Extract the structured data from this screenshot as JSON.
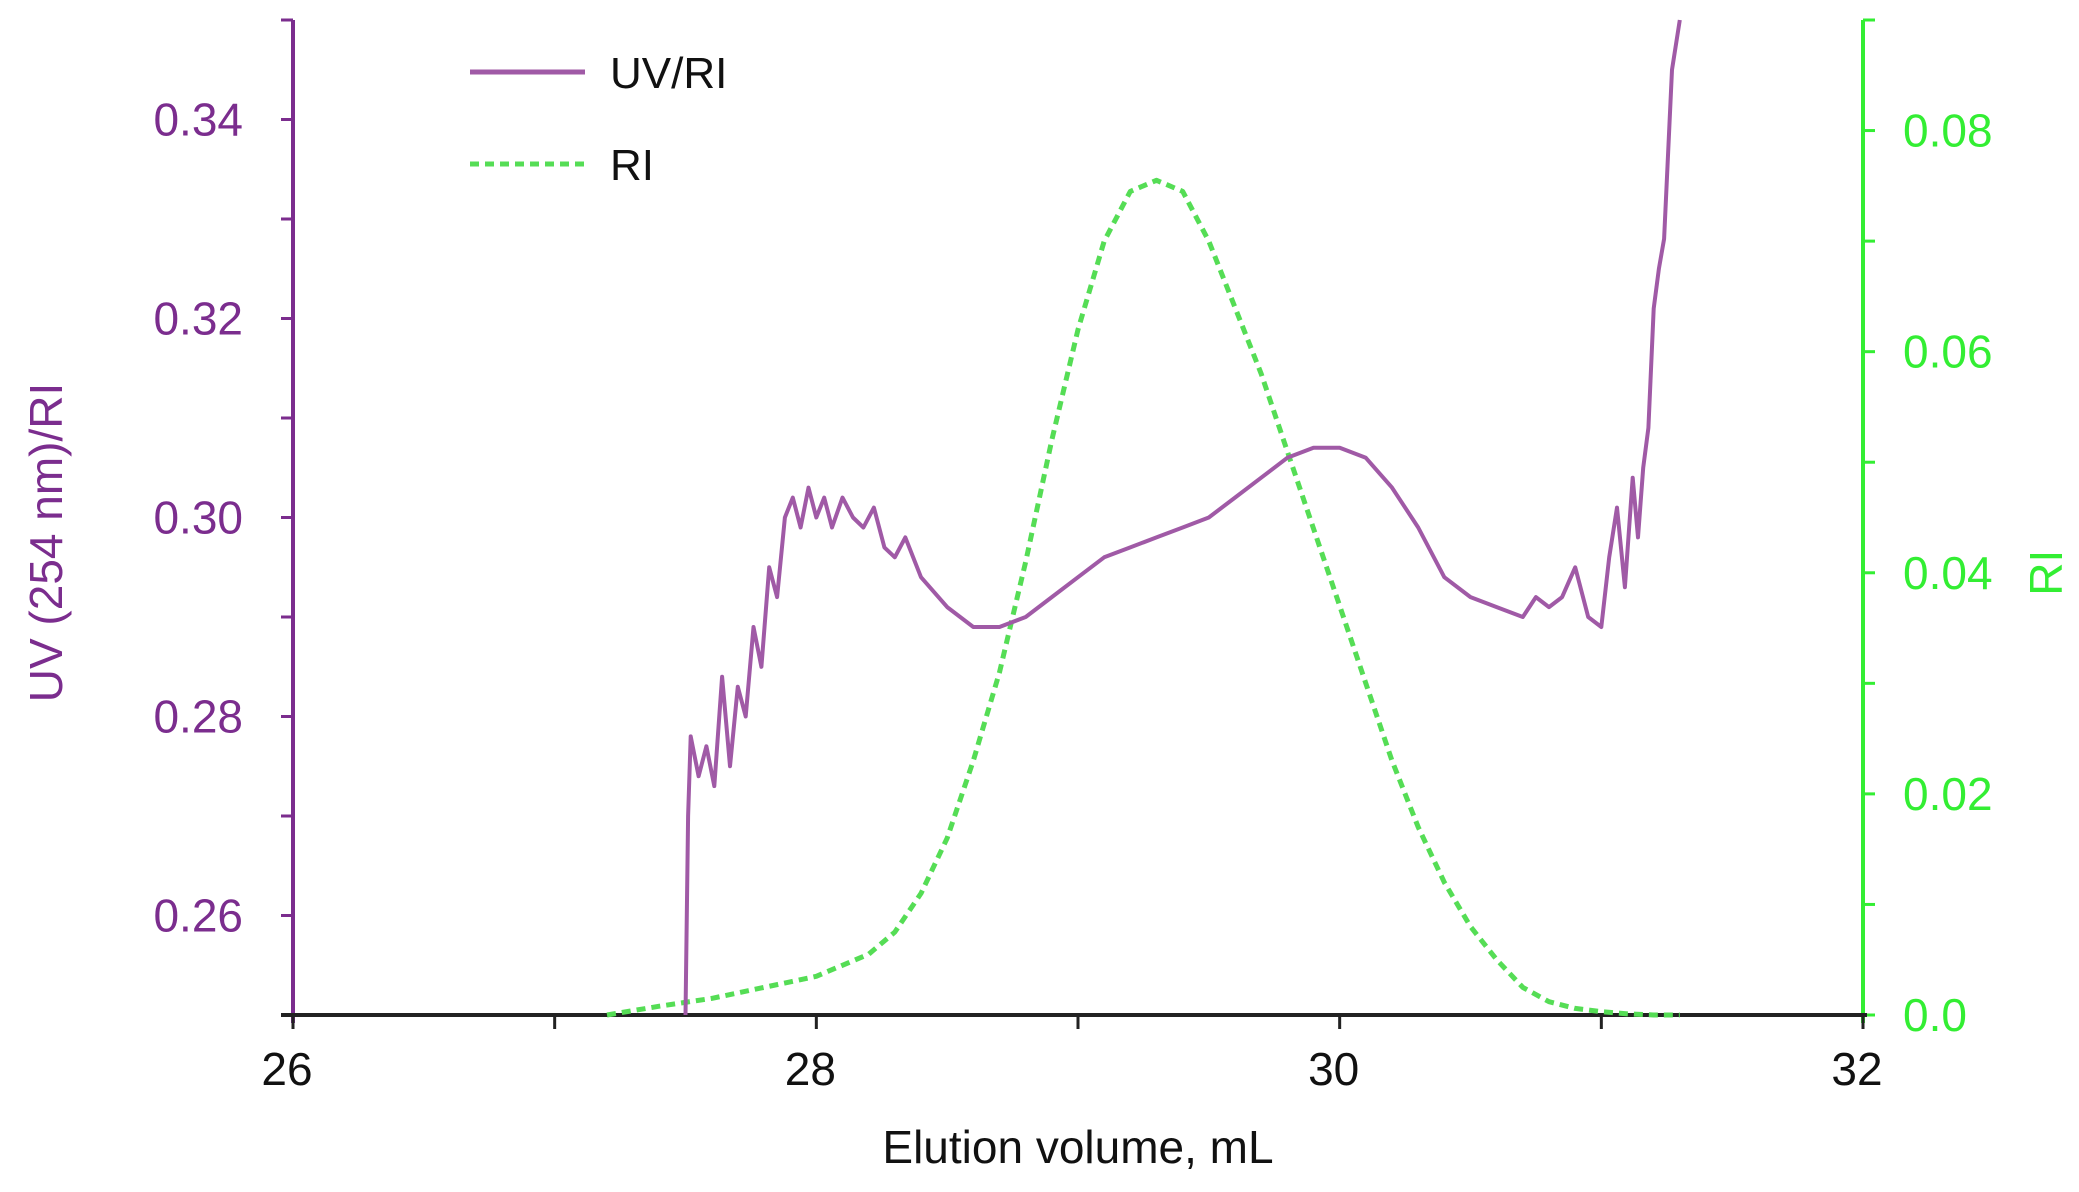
{
  "chart_data": {
    "type": "line",
    "title": "",
    "xlabel": "Elution volume, mL",
    "ylabel_left": "UV (254 nm)/RI",
    "ylabel_right": "RI",
    "xlim": [
      26,
      32
    ],
    "ylim_left": [
      0.25,
      0.35
    ],
    "ylim_right": [
      0.0,
      0.09
    ],
    "x_ticks": [
      26,
      28,
      30,
      32
    ],
    "x_minor_ticks": [
      27,
      29,
      31
    ],
    "y_left_ticks": [
      0.26,
      0.28,
      0.3,
      0.32,
      0.34
    ],
    "y_left_tick_labels": [
      "0.26",
      "0.28",
      "0.30",
      "0.32",
      "0.34"
    ],
    "y_right_ticks": [
      0.0,
      0.02,
      0.04,
      0.06,
      0.08
    ],
    "y_right_tick_labels": [
      "0.0",
      "0.02",
      "0.04",
      "0.06",
      "0.08"
    ],
    "grid": false,
    "legend_position": "top-left",
    "colors": {
      "left_axis": "#7b2d8e",
      "uv_ri_line": "#a05aa6",
      "right_axis": "#33ee33",
      "ri_line": "#55dd55",
      "x_axis": "#222222"
    },
    "series": [
      {
        "name": "UV/RI",
        "axis": "left",
        "style": "solid",
        "x": [
          27.5,
          27.51,
          27.52,
          27.55,
          27.58,
          27.61,
          27.64,
          27.67,
          27.7,
          27.73,
          27.76,
          27.79,
          27.82,
          27.85,
          27.88,
          27.91,
          27.94,
          27.97,
          28.0,
          28.03,
          28.06,
          28.1,
          28.14,
          28.18,
          28.22,
          28.26,
          28.3,
          28.34,
          28.4,
          28.5,
          28.6,
          28.7,
          28.8,
          28.9,
          29.0,
          29.1,
          29.2,
          29.3,
          29.4,
          29.5,
          29.6,
          29.7,
          29.8,
          29.9,
          30.0,
          30.1,
          30.2,
          30.3,
          30.4,
          30.5,
          30.6,
          30.7,
          30.75,
          30.8,
          30.85,
          30.9,
          30.95,
          31.0,
          31.03,
          31.06,
          31.09,
          31.12,
          31.14,
          31.16,
          31.18,
          31.2,
          31.22,
          31.24,
          31.27,
          31.3
        ],
        "values": [
          0.25,
          0.27,
          0.278,
          0.274,
          0.277,
          0.273,
          0.284,
          0.275,
          0.283,
          0.28,
          0.289,
          0.285,
          0.295,
          0.292,
          0.3,
          0.302,
          0.299,
          0.303,
          0.3,
          0.302,
          0.299,
          0.302,
          0.3,
          0.299,
          0.301,
          0.297,
          0.296,
          0.298,
          0.294,
          0.291,
          0.289,
          0.289,
          0.29,
          0.292,
          0.294,
          0.296,
          0.297,
          0.298,
          0.299,
          0.3,
          0.302,
          0.304,
          0.306,
          0.307,
          0.307,
          0.306,
          0.303,
          0.299,
          0.294,
          0.292,
          0.291,
          0.29,
          0.292,
          0.291,
          0.292,
          0.295,
          0.29,
          0.289,
          0.296,
          0.301,
          0.293,
          0.304,
          0.298,
          0.305,
          0.309,
          0.321,
          0.325,
          0.328,
          0.345,
          0.35
        ]
      },
      {
        "name": "RI",
        "axis": "right",
        "style": "dashed",
        "x": [
          27.2,
          27.4,
          27.6,
          27.8,
          28.0,
          28.2,
          28.3,
          28.4,
          28.5,
          28.6,
          28.7,
          28.8,
          28.9,
          29.0,
          29.1,
          29.2,
          29.3,
          29.4,
          29.5,
          29.6,
          29.7,
          29.8,
          29.9,
          30.0,
          30.1,
          30.2,
          30.3,
          30.4,
          30.5,
          30.6,
          30.7,
          30.8,
          30.9,
          31.0,
          31.1,
          31.2,
          31.3
        ],
        "values": [
          0.0,
          0.0008,
          0.0015,
          0.0025,
          0.0035,
          0.0055,
          0.0075,
          0.011,
          0.016,
          0.023,
          0.031,
          0.041,
          0.052,
          0.062,
          0.07,
          0.0745,
          0.0755,
          0.0745,
          0.07,
          0.064,
          0.058,
          0.051,
          0.044,
          0.037,
          0.03,
          0.023,
          0.017,
          0.012,
          0.008,
          0.005,
          0.0025,
          0.0012,
          0.0006,
          0.0003,
          0.0001,
          0.0,
          0.0
        ]
      }
    ]
  }
}
